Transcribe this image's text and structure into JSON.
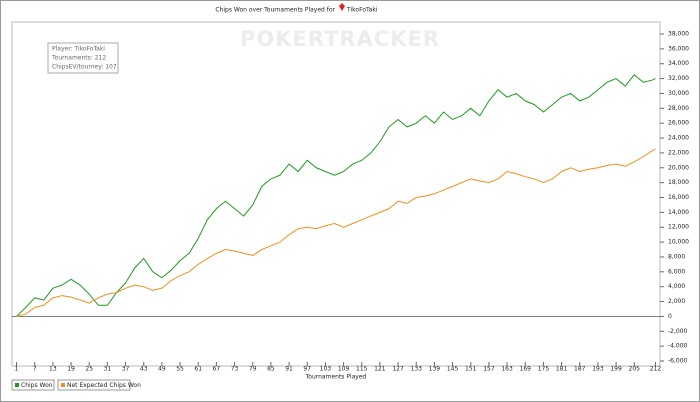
{
  "chart_data": {
    "type": "line",
    "title": "Chips Won over Tournaments Played for",
    "player": "TikoFoTaki",
    "watermark": "POKERTRACKER",
    "info": [
      "Player: TikoFoTaki",
      "Tournaments: 212",
      "ChipsEV/tourney: 107"
    ],
    "x_label": "Tournaments Played",
    "x": [
      1,
      4,
      7,
      10,
      13,
      16,
      19,
      22,
      25,
      28,
      31,
      34,
      37,
      40,
      43,
      46,
      49,
      52,
      55,
      58,
      61,
      64,
      67,
      70,
      73,
      76,
      79,
      82,
      85,
      88,
      91,
      94,
      97,
      100,
      103,
      106,
      109,
      112,
      115,
      118,
      121,
      124,
      127,
      130,
      133,
      136,
      139,
      142,
      145,
      148,
      151,
      154,
      157,
      160,
      163,
      166,
      169,
      172,
      175,
      178,
      181,
      184,
      187,
      190,
      193,
      196,
      199,
      202,
      205,
      208,
      211,
      212
    ],
    "series": [
      {
        "name": "Chips Won",
        "color": "#1f9b1f",
        "values": [
          0,
          1200,
          2500,
          2200,
          3800,
          4200,
          5000,
          4200,
          3000,
          1500,
          1500,
          3200,
          4500,
          6500,
          7800,
          6000,
          5200,
          6200,
          7500,
          8500,
          10500,
          13000,
          14500,
          15500,
          14500,
          13500,
          15000,
          17500,
          18500,
          19000,
          20500,
          19500,
          21000,
          20000,
          19500,
          19000,
          19500,
          20500,
          21000,
          22000,
          23500,
          25500,
          26500,
          25500,
          26000,
          27000,
          26000,
          27500,
          26500,
          27000,
          28000,
          27000,
          29000,
          30500,
          29500,
          30000,
          29000,
          28500,
          27500,
          28500,
          29500,
          30000,
          29000,
          29500,
          30500,
          31500,
          32000,
          31000,
          32500,
          31500,
          31800,
          32000
        ]
      },
      {
        "name": "Net Expected Chips Won",
        "color": "#f0901e",
        "values": [
          0,
          300,
          1200,
          1500,
          2500,
          2800,
          2600,
          2200,
          1800,
          2500,
          3000,
          3200,
          3800,
          4200,
          4000,
          3500,
          3800,
          4800,
          5500,
          6000,
          7000,
          7800,
          8500,
          9000,
          8800,
          8500,
          8200,
          9000,
          9500,
          10000,
          11000,
          11800,
          12000,
          11800,
          12200,
          12500,
          12000,
          12500,
          13000,
          13500,
          14000,
          14500,
          15500,
          15200,
          16000,
          16200,
          16500,
          17000,
          17500,
          18000,
          18500,
          18200,
          18000,
          18500,
          19500,
          19200,
          18800,
          18500,
          18000,
          18500,
          19500,
          20000,
          19500,
          19800,
          20000,
          20300,
          20500,
          20200,
          20800,
          21500,
          22300,
          22500
        ]
      }
    ],
    "xlim": [
      -0.5,
      213.5
    ],
    "xticks": [
      1,
      7,
      13,
      19,
      25,
      31,
      37,
      43,
      49,
      55,
      61,
      67,
      73,
      79,
      85,
      91,
      97,
      103,
      109,
      115,
      121,
      127,
      133,
      139,
      145,
      151,
      157,
      163,
      169,
      175,
      181,
      187,
      193,
      199,
      205,
      212
    ],
    "ylim": [
      -6000,
      38000
    ],
    "yticks": [
      {
        "value": -6000,
        "label": "-6,000"
      },
      {
        "value": -4000,
        "label": "-4,000"
      },
      {
        "value": -2000,
        "label": "-2,000"
      },
      0,
      {
        "value": 2000,
        "label": "2,000"
      },
      {
        "value": 4000,
        "label": "4,000"
      },
      {
        "value": 6000,
        "label": "6,000"
      },
      {
        "value": 8000,
        "label": "8,000"
      },
      {
        "value": 10000,
        "label": "10,000"
      },
      {
        "value": 12000,
        "label": "12,000"
      },
      {
        "value": 14000,
        "label": "14,000"
      },
      {
        "value": 16000,
        "label": "16,000"
      },
      {
        "value": 18000,
        "label": "18,000"
      },
      {
        "value": 20000,
        "label": "20,000"
      },
      {
        "value": 22000,
        "label": "22,000"
      },
      {
        "value": 24000,
        "label": "24,000"
      },
      {
        "value": 26000,
        "label": "26,000"
      },
      {
        "value": 28000,
        "label": "28,000"
      },
      {
        "value": 30000,
        "label": "30,000"
      },
      {
        "value": 32000,
        "label": "32,000"
      },
      {
        "value": 34000,
        "label": "34,000"
      },
      {
        "value": 36000,
        "label": "36,000"
      },
      {
        "value": 38000,
        "label": "38,000"
      }
    ],
    "grid": false,
    "legend": "bottom-left"
  }
}
